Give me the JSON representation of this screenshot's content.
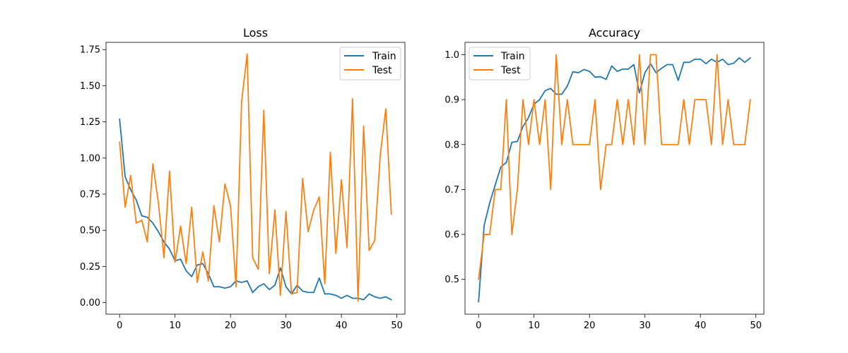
{
  "chart_data": [
    {
      "type": "line",
      "title": "Loss",
      "xlabel": "",
      "ylabel": "",
      "xlim": [
        -2.45,
        51.45
      ],
      "ylim": [
        -0.08,
        1.8
      ],
      "xticks": [
        0,
        10,
        20,
        30,
        40,
        50
      ],
      "xtick_labels": [
        "0",
        "10",
        "20",
        "30",
        "40",
        "50"
      ],
      "yticks": [
        0.0,
        0.25,
        0.5,
        0.75,
        1.0,
        1.25,
        1.5,
        1.75
      ],
      "ytick_labels": [
        "0.00",
        "0.25",
        "0.50",
        "0.75",
        "1.00",
        "1.25",
        "1.50",
        "1.75"
      ],
      "grid": false,
      "legend_position": "top-right",
      "series": [
        {
          "name": "Train",
          "color": "#1f77b4",
          "values": [
            1.27,
            0.87,
            0.78,
            0.71,
            0.6,
            0.59,
            0.55,
            0.49,
            0.42,
            0.37,
            0.29,
            0.3,
            0.22,
            0.18,
            0.26,
            0.27,
            0.2,
            0.11,
            0.11,
            0.1,
            0.11,
            0.15,
            0.14,
            0.15,
            0.07,
            0.11,
            0.13,
            0.09,
            0.12,
            0.24,
            0.11,
            0.06,
            0.12,
            0.08,
            0.07,
            0.07,
            0.17,
            0.06,
            0.06,
            0.05,
            0.03,
            0.05,
            0.03,
            0.03,
            0.02,
            0.06,
            0.04,
            0.03,
            0.04,
            0.02
          ]
        },
        {
          "name": "Test",
          "color": "#ff7f0e",
          "values": [
            1.11,
            0.66,
            0.88,
            0.55,
            0.57,
            0.42,
            0.96,
            0.69,
            0.31,
            0.91,
            0.28,
            0.53,
            0.27,
            0.66,
            0.14,
            0.35,
            0.15,
            0.67,
            0.42,
            0.82,
            0.67,
            0.11,
            1.39,
            1.72,
            0.31,
            0.23,
            1.33,
            0.2,
            0.64,
            0.05,
            0.63,
            0.06,
            0.07,
            0.86,
            0.49,
            0.64,
            0.73,
            0.13,
            1.04,
            0.34,
            0.85,
            0.38,
            1.41,
            0.01,
            1.22,
            0.36,
            0.43,
            1.02,
            1.34,
            0.61
          ]
        }
      ]
    },
    {
      "type": "line",
      "title": "Accuracy",
      "xlabel": "",
      "ylabel": "",
      "xlim": [
        -2.45,
        51.45
      ],
      "ylim": [
        0.4225,
        1.0275
      ],
      "xticks": [
        0,
        10,
        20,
        30,
        40,
        50
      ],
      "xtick_labels": [
        "0",
        "10",
        "20",
        "30",
        "40",
        "50"
      ],
      "yticks": [
        0.5,
        0.6,
        0.7,
        0.8,
        0.9,
        1.0
      ],
      "ytick_labels": [
        "0.5",
        "0.6",
        "0.7",
        "0.8",
        "0.9",
        "1.0"
      ],
      "grid": false,
      "legend_position": "top-left",
      "series": [
        {
          "name": "Train",
          "color": "#1f77b4",
          "values": [
            0.45,
            0.62,
            0.67,
            0.71,
            0.75,
            0.76,
            0.805,
            0.807,
            0.84,
            0.86,
            0.89,
            0.9,
            0.92,
            0.925,
            0.912,
            0.912,
            0.93,
            0.962,
            0.96,
            0.967,
            0.963,
            0.95,
            0.951,
            0.945,
            0.975,
            0.963,
            0.968,
            0.968,
            0.978,
            0.915,
            0.96,
            0.98,
            0.96,
            0.97,
            0.978,
            0.978,
            0.943,
            0.983,
            0.983,
            0.99,
            0.99,
            0.98,
            0.99,
            0.983,
            0.99,
            0.978,
            0.981,
            0.993,
            0.983,
            0.993
          ]
        },
        {
          "name": "Test",
          "color": "#ff7f0e",
          "values": [
            0.5,
            0.6,
            0.6,
            0.7,
            0.7,
            0.9,
            0.6,
            0.7,
            0.9,
            0.8,
            0.9,
            0.8,
            0.9,
            0.7,
            1.0,
            0.8,
            0.9,
            0.8,
            0.8,
            0.8,
            0.8,
            0.9,
            0.7,
            0.8,
            0.8,
            0.9,
            0.8,
            0.9,
            0.8,
            1.0,
            0.8,
            1.0,
            1.0,
            0.8,
            0.8,
            0.8,
            0.8,
            0.9,
            0.8,
            0.9,
            0.9,
            0.9,
            0.8,
            1.0,
            0.8,
            0.9,
            0.8,
            0.8,
            0.8,
            0.9
          ]
        }
      ]
    }
  ]
}
